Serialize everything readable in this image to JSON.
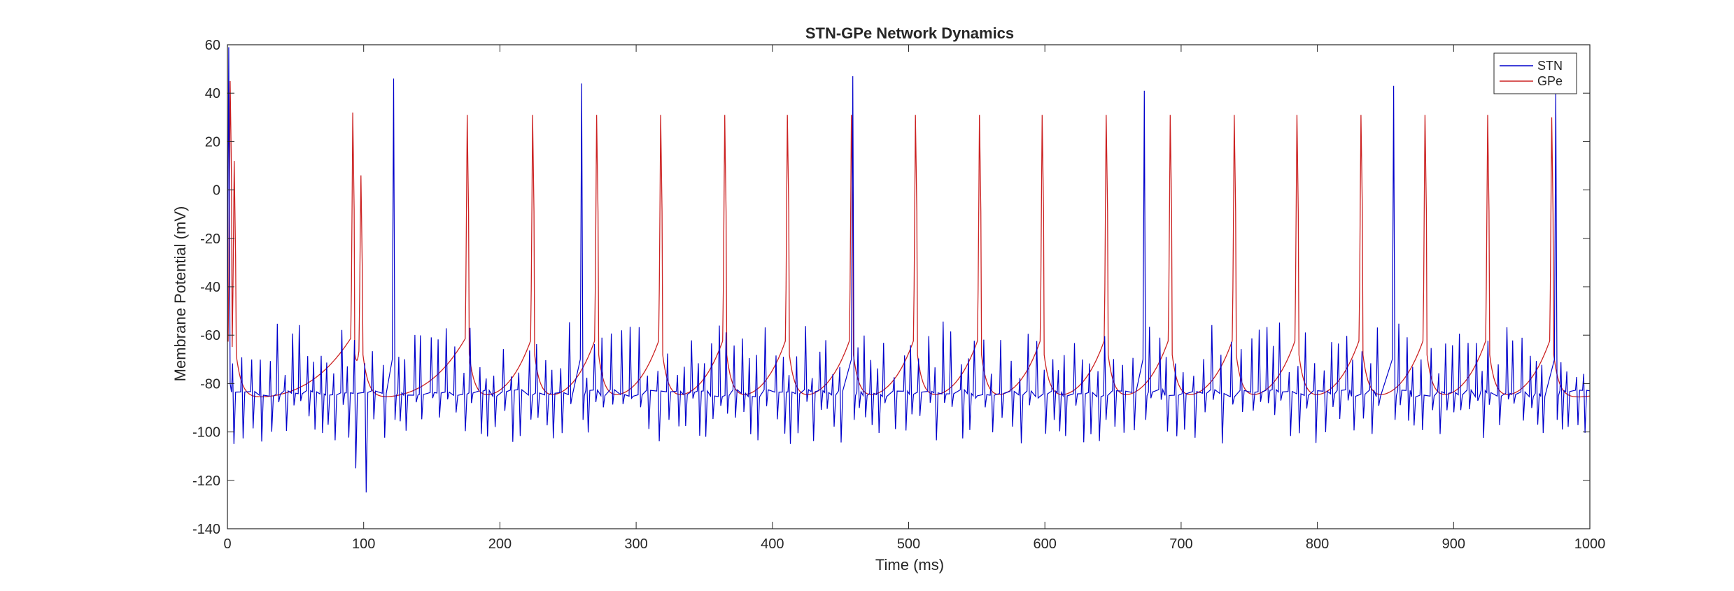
{
  "colors": {
    "stn": "#0000cc",
    "gpe": "#cc2222",
    "axis": "#262626",
    "background": "#ffffff"
  },
  "chart_data": {
    "type": "line",
    "title": "STN-GPe Network Dynamics",
    "xlabel": "Time (ms)",
    "ylabel": "Membrane Potential (mV)",
    "xlim": [
      0,
      1000
    ],
    "ylim": [
      -140,
      60
    ],
    "xticks": [
      0,
      100,
      200,
      300,
      400,
      500,
      600,
      700,
      800,
      900,
      1000
    ],
    "yticks": [
      -140,
      -120,
      -100,
      -80,
      -60,
      -40,
      -20,
      0,
      20,
      40,
      60
    ],
    "grid": false,
    "legend_position": "top-right",
    "series": [
      {
        "name": "STN",
        "color": "#0000cc",
        "baseline_mV": -84,
        "large_spikes": [
          {
            "t": 1,
            "peak": 59
          },
          {
            "t": 122,
            "peak": 46
          },
          {
            "t": 260,
            "peak": 44
          },
          {
            "t": 459,
            "peak": 47
          },
          {
            "t": 673,
            "peak": 41
          },
          {
            "t": 856,
            "peak": 43
          },
          {
            "t": 975,
            "peak": 40
          }
        ],
        "deep_troughs": [
          {
            "t": 93,
            "min": -115
          },
          {
            "t": 100,
            "min": -125
          }
        ]
      },
      {
        "name": "GPe",
        "color": "#cc2222",
        "spikes": [
          {
            "t": 2,
            "peak": 45
          },
          {
            "t": 5,
            "peak": 12
          },
          {
            "t": 92,
            "peak": 32
          },
          {
            "t": 98,
            "peak": 6
          },
          {
            "t": 176,
            "peak": 31
          },
          {
            "t": 224,
            "peak": 31
          },
          {
            "t": 271,
            "peak": 31
          },
          {
            "t": 318,
            "peak": 31
          },
          {
            "t": 365,
            "peak": 31
          },
          {
            "t": 411,
            "peak": 31
          },
          {
            "t": 458,
            "peak": 31
          },
          {
            "t": 505,
            "peak": 31
          },
          {
            "t": 552,
            "peak": 31
          },
          {
            "t": 598,
            "peak": 31
          },
          {
            "t": 645,
            "peak": 31
          },
          {
            "t": 692,
            "peak": 31
          },
          {
            "t": 739,
            "peak": 31
          },
          {
            "t": 785,
            "peak": 31
          },
          {
            "t": 832,
            "peak": 31
          },
          {
            "t": 879,
            "peak": 31
          },
          {
            "t": 925,
            "peak": 31
          },
          {
            "t": 972,
            "peak": 30
          }
        ],
        "trough_mV": -86
      }
    ]
  }
}
